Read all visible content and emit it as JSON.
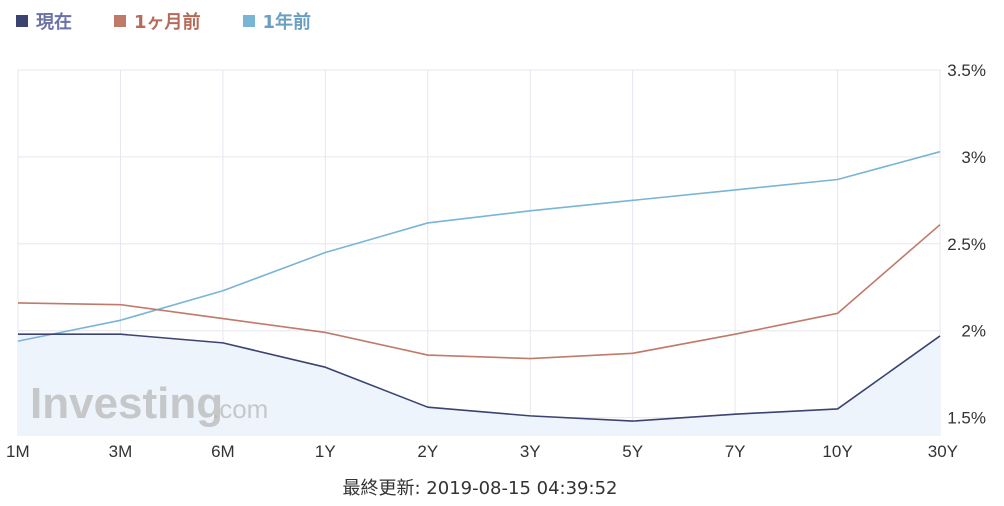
{
  "legend": [
    {
      "name": "現在",
      "color": "#3b4370",
      "text_color": "#6b72a6"
    },
    {
      "name": "1ヶ月前",
      "color": "#c07a6a",
      "text_color": "#b56a5a"
    },
    {
      "name": "1年前",
      "color": "#7ab4d6",
      "text_color": "#6a9fc2"
    }
  ],
  "watermark": {
    "brand": "Investing",
    "suffix": ".com"
  },
  "footer": {
    "text": "最終更新: 2019-08-15 04:39:52"
  },
  "chart_data": {
    "type": "line",
    "x": [
      "1M",
      "3M",
      "6M",
      "1Y",
      "2Y",
      "3Y",
      "5Y",
      "7Y",
      "10Y",
      "30Y"
    ],
    "y_ticks": [
      "1.5%",
      "2%",
      "2.5%",
      "3%",
      "3.5%"
    ],
    "ylim": [
      1.4,
      3.5
    ],
    "y_axis_position": "right",
    "grid": true,
    "legend_position": "top-left",
    "series": [
      {
        "name": "現在",
        "color": "#3b4370",
        "area_fill": "#eef4fc",
        "values": [
          1.98,
          1.98,
          1.93,
          1.79,
          1.56,
          1.51,
          1.48,
          1.52,
          1.55,
          1.97
        ]
      },
      {
        "name": "1ヶ月前",
        "color": "#c07a6a",
        "values": [
          2.16,
          2.15,
          2.07,
          1.99,
          1.86,
          1.84,
          1.87,
          1.98,
          2.1,
          2.61
        ]
      },
      {
        "name": "1年前",
        "color": "#7ab4d6",
        "values": [
          1.94,
          2.06,
          2.23,
          2.45,
          2.62,
          2.69,
          2.75,
          2.81,
          2.87,
          3.03
        ]
      }
    ]
  }
}
